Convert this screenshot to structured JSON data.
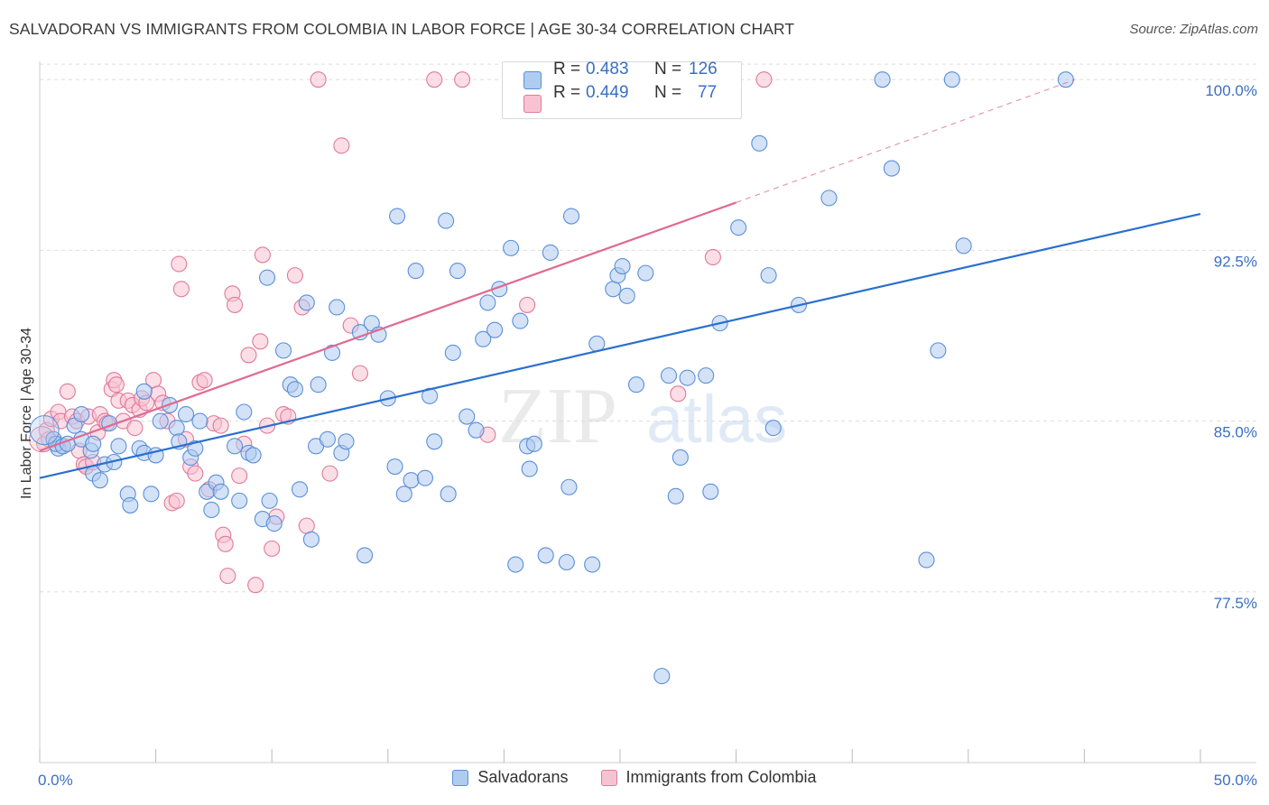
{
  "title": "SALVADORAN VS IMMIGRANTS FROM COLOMBIA IN LABOR FORCE | AGE 30-34 CORRELATION CHART",
  "source": "Source: ZipAtlas.com",
  "watermark": {
    "zip": "ZIP",
    "atlas": "atlas"
  },
  "colors": {
    "blue_fill": "#aecbf0",
    "blue_stroke": "#5b8fd8",
    "blue_line": "#2a6fd0",
    "pink_fill": "#f7c3d2",
    "pink_stroke": "#e07a9c",
    "pink_line": "#e06a93",
    "tick_label": "#3a6fc4",
    "grid": "#dddddd"
  },
  "stats": {
    "r_label": "R =",
    "n_label": "N =",
    "salvadorans": {
      "r": "0.483",
      "n": "126"
    },
    "colombia": {
      "r": "0.449",
      "n": "77"
    }
  },
  "legend": {
    "salvadorans": "Salvadorans",
    "colombia": "Immigrants from Colombia"
  },
  "chart_data": {
    "type": "scatter",
    "title": "SALVADORAN VS IMMIGRANTS FROM COLOMBIA IN LABOR FORCE | AGE 30-34 CORRELATION CHART",
    "xlabel": "",
    "ylabel": "In Labor Force | Age 30-34",
    "xlim": [
      0,
      50
    ],
    "ylim": [
      70,
      100.8
    ],
    "x_tick_labels": [
      "0.0%",
      "50.0%"
    ],
    "y_ticks": [
      77.5,
      85.0,
      92.5,
      100.0
    ],
    "y_tick_labels": [
      "77.5%",
      "85.0%",
      "92.5%",
      "100.0%"
    ],
    "grid": true,
    "legend_position": "bottom",
    "series": [
      {
        "name": "Salvadorans",
        "r": 0.483,
        "n": 126,
        "trend": {
          "x": [
            0,
            50
          ],
          "y": [
            82.5,
            94.1
          ]
        },
        "points": [
          [
            0.6,
            84.2
          ],
          [
            0.8,
            83.8
          ],
          [
            0.7,
            84.0
          ],
          [
            1.0,
            83.9
          ],
          [
            1.2,
            84.0
          ],
          [
            1.5,
            84.8
          ],
          [
            1.8,
            84.2
          ],
          [
            1.8,
            85.3
          ],
          [
            2.2,
            83.7
          ],
          [
            2.3,
            84.0
          ],
          [
            2.3,
            82.7
          ],
          [
            2.6,
            82.4
          ],
          [
            2.8,
            83.1
          ],
          [
            3.0,
            84.9
          ],
          [
            3.2,
            83.2
          ],
          [
            3.4,
            83.9
          ],
          [
            3.8,
            81.8
          ],
          [
            3.9,
            81.3
          ],
          [
            4.3,
            83.8
          ],
          [
            4.5,
            83.6
          ],
          [
            4.5,
            86.3
          ],
          [
            4.8,
            81.8
          ],
          [
            5.0,
            83.5
          ],
          [
            5.2,
            85.0
          ],
          [
            5.6,
            85.7
          ],
          [
            5.9,
            84.7
          ],
          [
            6.0,
            84.1
          ],
          [
            6.3,
            85.3
          ],
          [
            6.5,
            83.4
          ],
          [
            6.7,
            83.8
          ],
          [
            6.9,
            85.0
          ],
          [
            7.2,
            81.9
          ],
          [
            7.4,
            81.1
          ],
          [
            7.6,
            82.3
          ],
          [
            7.8,
            81.9
          ],
          [
            8.4,
            83.9
          ],
          [
            8.6,
            81.5
          ],
          [
            8.8,
            85.4
          ],
          [
            9.0,
            83.6
          ],
          [
            9.2,
            83.5
          ],
          [
            9.6,
            80.7
          ],
          [
            9.8,
            91.3
          ],
          [
            9.9,
            81.5
          ],
          [
            10.1,
            80.5
          ],
          [
            10.5,
            88.1
          ],
          [
            10.8,
            86.6
          ],
          [
            11.0,
            86.4
          ],
          [
            11.2,
            82.0
          ],
          [
            11.5,
            90.2
          ],
          [
            11.7,
            79.8
          ],
          [
            11.9,
            83.9
          ],
          [
            12.0,
            86.6
          ],
          [
            12.4,
            84.2
          ],
          [
            12.6,
            88.0
          ],
          [
            12.8,
            90.0
          ],
          [
            13.0,
            83.6
          ],
          [
            13.2,
            84.1
          ],
          [
            13.8,
            88.9
          ],
          [
            14.0,
            79.1
          ],
          [
            14.3,
            89.3
          ],
          [
            14.6,
            88.8
          ],
          [
            15.0,
            86.0
          ],
          [
            15.3,
            83.0
          ],
          [
            15.4,
            94.0
          ],
          [
            15.7,
            81.8
          ],
          [
            16.0,
            82.4
          ],
          [
            16.2,
            91.6
          ],
          [
            16.6,
            82.5
          ],
          [
            16.8,
            86.1
          ],
          [
            17.0,
            84.1
          ],
          [
            17.5,
            93.8
          ],
          [
            17.6,
            81.8
          ],
          [
            17.8,
            88.0
          ],
          [
            18.0,
            91.6
          ],
          [
            18.4,
            85.2
          ],
          [
            18.8,
            84.6
          ],
          [
            19.1,
            88.6
          ],
          [
            19.3,
            90.2
          ],
          [
            19.6,
            89.0
          ],
          [
            19.8,
            90.8
          ],
          [
            20.3,
            92.6
          ],
          [
            20.5,
            78.7
          ],
          [
            20.7,
            89.4
          ],
          [
            21.0,
            83.9
          ],
          [
            21.1,
            82.9
          ],
          [
            21.3,
            84.0
          ],
          [
            21.8,
            79.1
          ],
          [
            22.0,
            92.4
          ],
          [
            22.7,
            78.8
          ],
          [
            22.8,
            82.1
          ],
          [
            22.9,
            94.0
          ],
          [
            23.8,
            78.7
          ],
          [
            24.0,
            88.4
          ],
          [
            24.7,
            90.8
          ],
          [
            24.9,
            91.4
          ],
          [
            25.1,
            91.8
          ],
          [
            25.3,
            90.5
          ],
          [
            25.7,
            86.6
          ],
          [
            26.1,
            91.5
          ],
          [
            26.8,
            73.8
          ],
          [
            27.1,
            87.0
          ],
          [
            27.4,
            81.7
          ],
          [
            27.6,
            83.4
          ],
          [
            27.9,
            86.9
          ],
          [
            28.7,
            87.0
          ],
          [
            28.9,
            81.9
          ],
          [
            29.3,
            89.3
          ],
          [
            30.1,
            93.5
          ],
          [
            31.0,
            97.2
          ],
          [
            31.4,
            91.4
          ],
          [
            31.6,
            84.7
          ],
          [
            32.7,
            90.1
          ],
          [
            34.0,
            94.8
          ],
          [
            36.3,
            100.0
          ],
          [
            36.7,
            96.1
          ],
          [
            38.2,
            78.9
          ],
          [
            38.7,
            88.1
          ],
          [
            39.3,
            100.0
          ],
          [
            39.8,
            92.7
          ],
          [
            44.2,
            100.0
          ]
        ]
      },
      {
        "name": "Immigrants from Colombia",
        "r": 0.449,
        "n": 77,
        "trend": {
          "x": [
            0,
            30
          ],
          "y": [
            83.7,
            94.6
          ]
        },
        "trend_extension": {
          "x": [
            30,
            44.6
          ],
          "y": [
            94.6,
            100.0
          ]
        },
        "points": [
          [
            0.2,
            84.0
          ],
          [
            0.3,
            84.6
          ],
          [
            0.4,
            84.2
          ],
          [
            0.5,
            85.1
          ],
          [
            0.8,
            85.4
          ],
          [
            0.9,
            85.0
          ],
          [
            1.0,
            83.9
          ],
          [
            1.2,
            86.3
          ],
          [
            1.4,
            85.2
          ],
          [
            1.6,
            85.0
          ],
          [
            1.7,
            83.7
          ],
          [
            1.9,
            83.1
          ],
          [
            2.0,
            83.0
          ],
          [
            2.1,
            85.2
          ],
          [
            2.3,
            83.2
          ],
          [
            2.5,
            84.5
          ],
          [
            2.6,
            85.3
          ],
          [
            2.8,
            85.0
          ],
          [
            2.9,
            84.9
          ],
          [
            3.1,
            86.4
          ],
          [
            3.2,
            86.8
          ],
          [
            3.3,
            86.6
          ],
          [
            3.4,
            85.9
          ],
          [
            3.6,
            85.0
          ],
          [
            3.8,
            85.9
          ],
          [
            4.0,
            85.7
          ],
          [
            4.1,
            84.7
          ],
          [
            4.3,
            85.5
          ],
          [
            4.4,
            86.0
          ],
          [
            4.6,
            85.8
          ],
          [
            4.9,
            86.8
          ],
          [
            5.1,
            86.2
          ],
          [
            5.3,
            85.8
          ],
          [
            5.5,
            85.0
          ],
          [
            5.7,
            81.4
          ],
          [
            5.9,
            81.5
          ],
          [
            6.0,
            91.9
          ],
          [
            6.1,
            90.8
          ],
          [
            6.3,
            84.2
          ],
          [
            6.5,
            83.0
          ],
          [
            6.7,
            82.7
          ],
          [
            6.9,
            86.7
          ],
          [
            7.1,
            86.8
          ],
          [
            7.3,
            82.0
          ],
          [
            7.5,
            84.9
          ],
          [
            7.8,
            84.8
          ],
          [
            7.9,
            80.0
          ],
          [
            8.0,
            79.6
          ],
          [
            8.1,
            78.2
          ],
          [
            8.3,
            90.6
          ],
          [
            8.4,
            90.1
          ],
          [
            8.6,
            82.6
          ],
          [
            8.8,
            84.0
          ],
          [
            9.0,
            87.9
          ],
          [
            9.3,
            77.8
          ],
          [
            9.5,
            88.5
          ],
          [
            9.6,
            92.3
          ],
          [
            9.8,
            84.8
          ],
          [
            10.0,
            79.4
          ],
          [
            10.2,
            80.8
          ],
          [
            10.5,
            85.3
          ],
          [
            10.7,
            85.2
          ],
          [
            11.0,
            91.4
          ],
          [
            11.3,
            90.0
          ],
          [
            11.5,
            80.4
          ],
          [
            12.0,
            100.0
          ],
          [
            12.5,
            82.7
          ],
          [
            13.0,
            97.1
          ],
          [
            13.4,
            89.2
          ],
          [
            13.8,
            87.1
          ],
          [
            17.0,
            100.0
          ],
          [
            18.2,
            100.0
          ],
          [
            19.3,
            84.4
          ],
          [
            21.0,
            90.1
          ],
          [
            27.5,
            86.2
          ],
          [
            29.0,
            92.2
          ],
          [
            31.2,
            100.0
          ]
        ]
      }
    ]
  }
}
